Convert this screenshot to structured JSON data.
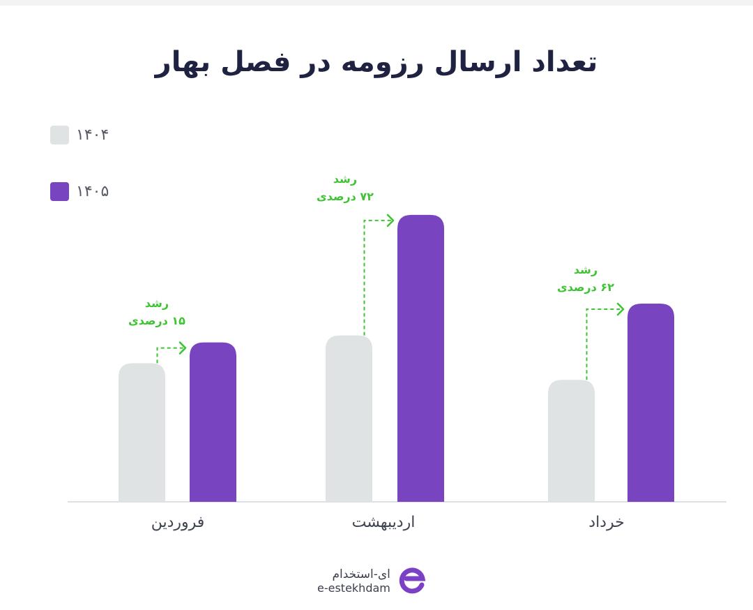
{
  "chart_data": {
    "type": "bar",
    "title": "تعداد ارسال رزومه در فصل بهار",
    "categories": [
      "فروردین",
      "اردیبهشت",
      "خرداد"
    ],
    "series": [
      {
        "name": "۱۴۰۴",
        "values": [
          100,
          120,
          88
        ]
      },
      {
        "name": "۱۴۰۵",
        "values": [
          115,
          207,
          143
        ]
      }
    ],
    "colors": [
      "#dfe3e4",
      "#7844c0"
    ],
    "growth_labels": [
      {
        "line1": "رشد",
        "line2": "۱۵ درصدی"
      },
      {
        "line1": "رشد",
        "line2": "۷۲ درصدی"
      },
      {
        "line1": "رشد",
        "line2": "۶۲ درصدی"
      }
    ],
    "growth_color": "#3ec433",
    "ylim": [
      0,
      220
    ],
    "grid": false,
    "legend_position": "top-left"
  },
  "logo": {
    "fa": "ای‌-استخدام",
    "en": "e-estekhdam",
    "color": "#7b40c6"
  }
}
